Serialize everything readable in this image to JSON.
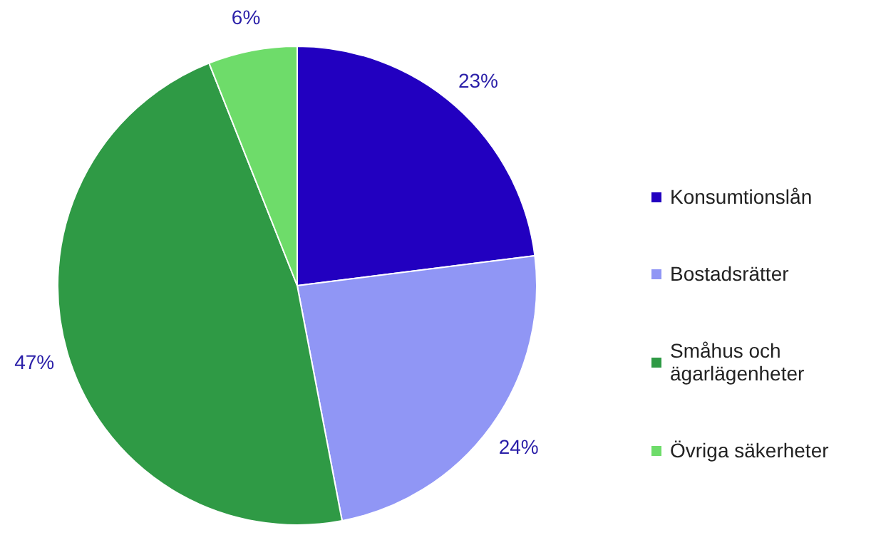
{
  "chart_data": {
    "type": "pie",
    "categories": [
      "Konsumtionslån",
      "Bostadsrätter",
      "Småhus och ägarlägenheter",
      "Övriga säkerheter"
    ],
    "values": [
      23,
      24,
      47,
      6
    ],
    "colors": [
      "#2200c0",
      "#9096f5",
      "#2f9a45",
      "#6edc6a"
    ],
    "value_labels": [
      "23%",
      "24%",
      "47%",
      "6%"
    ],
    "legend": "right"
  }
}
